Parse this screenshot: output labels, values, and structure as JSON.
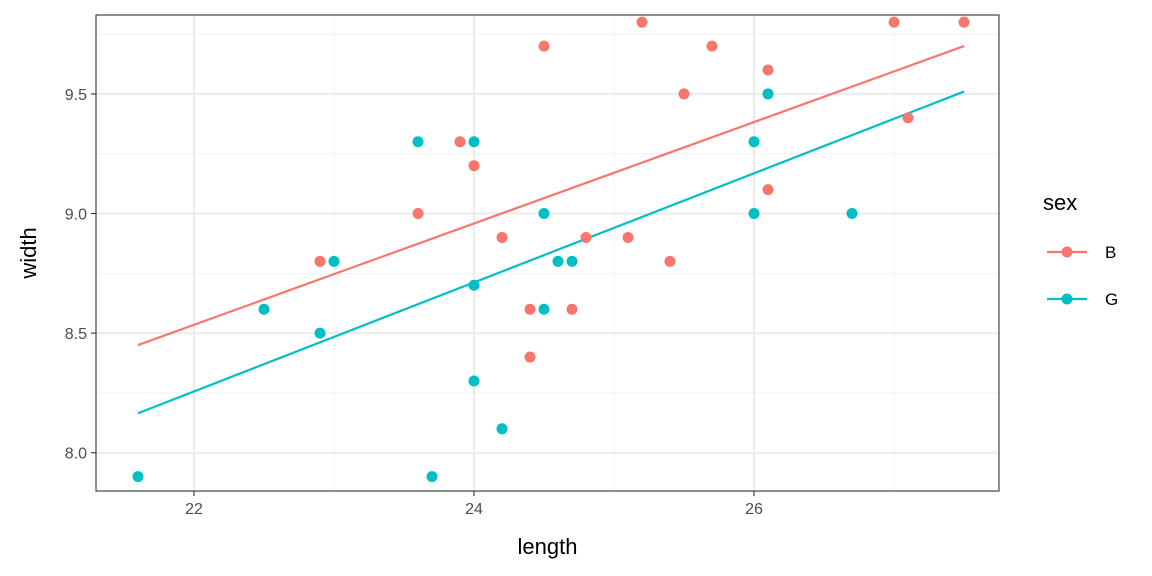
{
  "chart_data": {
    "type": "scatter",
    "xlabel": "length",
    "ylabel": "width",
    "xlim": [
      21.3,
      27.75
    ],
    "ylim": [
      7.84,
      9.83
    ],
    "x_ticks": [
      22,
      24,
      26
    ],
    "y_ticks": [
      8.0,
      8.5,
      9.0,
      9.5
    ],
    "x_tick_labels": [
      "22",
      "24",
      "26"
    ],
    "y_tick_labels": [
      "8.0",
      "8.5",
      "9.0",
      "9.5"
    ],
    "grid": true,
    "legend": {
      "title": "sex",
      "position": "right",
      "entries": [
        "B",
        "G"
      ]
    },
    "series": [
      {
        "name": "B",
        "color": "#F8766D",
        "points": [
          [
            22.9,
            8.8
          ],
          [
            23.6,
            9.0
          ],
          [
            23.9,
            9.3
          ],
          [
            24.0,
            9.2
          ],
          [
            24.2,
            8.9
          ],
          [
            24.4,
            8.6
          ],
          [
            24.4,
            8.4
          ],
          [
            24.5,
            9.7
          ],
          [
            24.7,
            8.6
          ],
          [
            24.8,
            8.9
          ],
          [
            25.1,
            8.9
          ],
          [
            25.2,
            9.8
          ],
          [
            25.4,
            8.8
          ],
          [
            25.5,
            9.5
          ],
          [
            25.7,
            9.7
          ],
          [
            26.1,
            9.6
          ],
          [
            26.1,
            9.1
          ],
          [
            27.0,
            9.8
          ],
          [
            27.1,
            9.4
          ],
          [
            27.5,
            9.8
          ]
        ],
        "fit": [
          [
            21.6,
            8.45
          ],
          [
            27.5,
            9.7
          ]
        ]
      },
      {
        "name": "G",
        "color": "#00BFC4",
        "points": [
          [
            21.6,
            7.9
          ],
          [
            22.5,
            8.6
          ],
          [
            22.9,
            8.5
          ],
          [
            23.0,
            8.8
          ],
          [
            23.6,
            9.3
          ],
          [
            23.7,
            7.9
          ],
          [
            24.0,
            9.3
          ],
          [
            24.0,
            8.7
          ],
          [
            24.0,
            8.3
          ],
          [
            24.2,
            8.1
          ],
          [
            24.5,
            9.0
          ],
          [
            24.5,
            8.6
          ],
          [
            24.6,
            8.8
          ],
          [
            24.7,
            8.8
          ],
          [
            26.0,
            9.3
          ],
          [
            26.0,
            9.0
          ],
          [
            26.1,
            9.5
          ],
          [
            26.7,
            9.0
          ]
        ],
        "fit": [
          [
            21.6,
            8.165
          ],
          [
            27.5,
            9.51
          ]
        ]
      }
    ]
  }
}
